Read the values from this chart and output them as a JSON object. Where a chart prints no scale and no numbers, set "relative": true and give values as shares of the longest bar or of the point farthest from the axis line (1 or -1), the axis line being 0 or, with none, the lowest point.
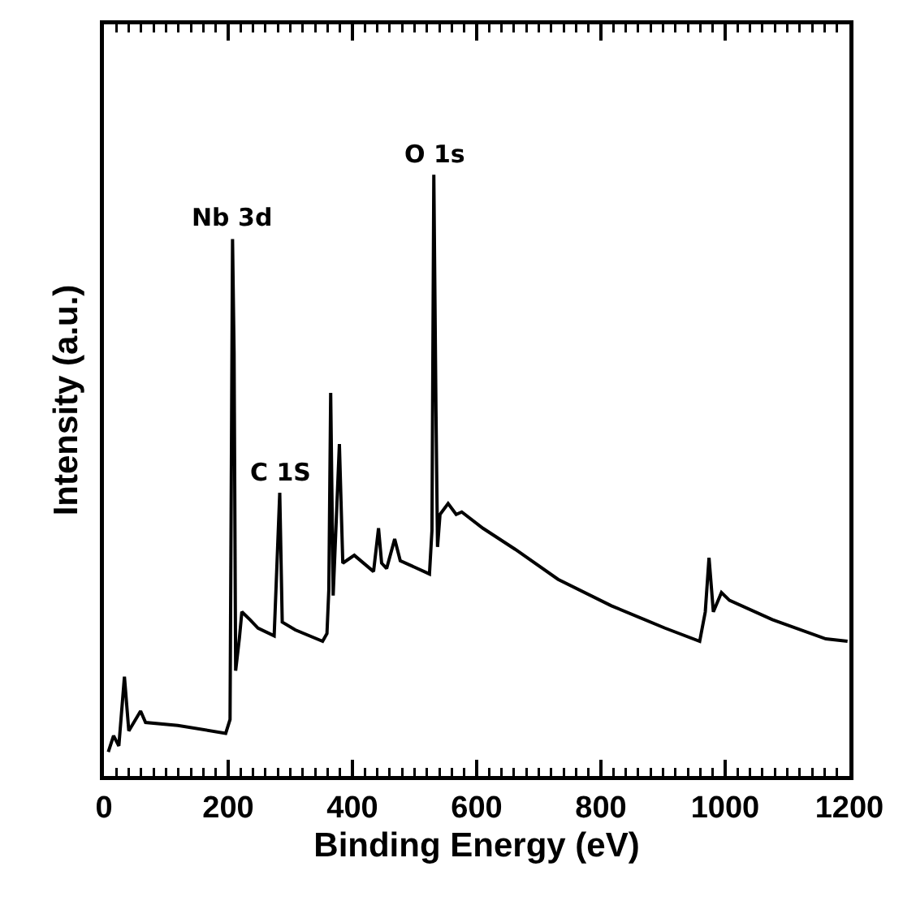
{
  "chart_data": {
    "type": "line",
    "relative": true,
    "xlabel": "Binding Energy (eV)",
    "ylabel": "Intensity (a.u.)",
    "xlim": [
      0,
      1200
    ],
    "xticks": [
      0,
      200,
      400,
      600,
      800,
      1000,
      1200
    ],
    "tick_labels": "x",
    "marker": "none",
    "line_style": "solid",
    "series": [
      {
        "color": "#000000",
        "x": [
          7,
          15.5,
          24,
          33,
          40,
          59,
          67,
          119,
          196,
          203,
          207,
          209.5,
          212,
          218,
          222,
          235,
          248,
          274,
          283,
          287,
          308,
          352,
          359,
          362,
          365,
          369,
          379,
          384.5,
          403,
          434,
          442,
          447,
          455,
          468,
          477,
          524,
          528,
          531,
          534.5,
          537,
          541,
          554,
          567,
          576,
          610,
          662,
          731,
          817,
          903,
          959,
          968,
          974,
          981,
          994,
          1007,
          1076,
          1162,
          1197
        ],
        "values": [
          0.04,
          0.067,
          0.05,
          0.165,
          0.075,
          0.108,
          0.089,
          0.084,
          0.071,
          0.094,
          0.893,
          0.704,
          0.175,
          0.229,
          0.273,
          0.26,
          0.246,
          0.233,
          0.471,
          0.256,
          0.243,
          0.224,
          0.237,
          0.31,
          0.637,
          0.3,
          0.552,
          0.354,
          0.367,
          0.34,
          0.412,
          0.354,
          0.345,
          0.394,
          0.358,
          0.336,
          0.408,
          1.0,
          0.606,
          0.381,
          0.435,
          0.453,
          0.435,
          0.439,
          0.412,
          0.377,
          0.327,
          0.283,
          0.246,
          0.224,
          0.273,
          0.363,
          0.273,
          0.305,
          0.292,
          0.26,
          0.228,
          0.224
        ]
      }
    ],
    "annotations": [
      {
        "text": "Nb 3d",
        "x": 207,
        "y": 0.893
      },
      {
        "text": "C 1S",
        "x": 283,
        "y": 0.471
      },
      {
        "text": "O 1s",
        "x": 531,
        "y": 1.0
      }
    ]
  }
}
